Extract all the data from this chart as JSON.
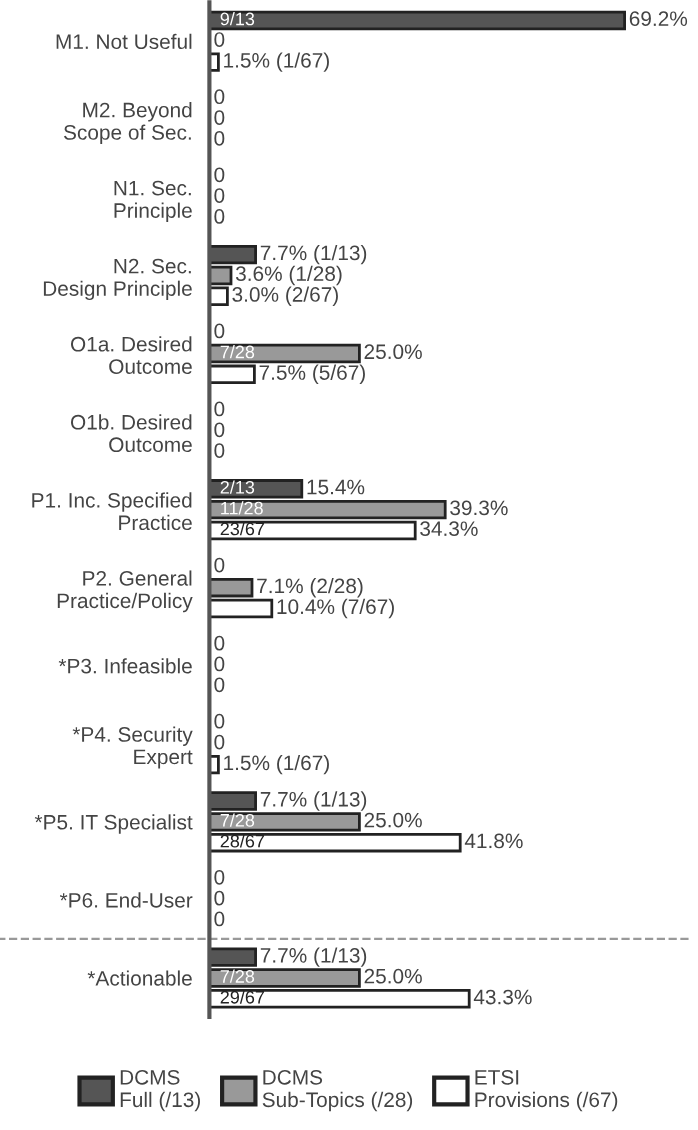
{
  "chart_data": {
    "type": "bar",
    "orientation": "horizontal",
    "categories": [
      "M1. Not Useful",
      "M2. Beyond\nScope of Sec.",
      "N1. Sec.\nPrinciple",
      "N2. Sec.\nDesign Principle",
      "O1a. Desired\nOutcome",
      "O1b. Desired\nOutcome",
      "P1. Inc. Specified\nPractice",
      "P2. General\nPractice/Policy",
      "*P3. Infeasible",
      "*P4. Security\nExpert",
      "*P5. IT Specialist",
      "*P6. End-User",
      "*Actionable"
    ],
    "series": [
      {
        "name": "DCMS\nFull (/13)",
        "color": "#555555",
        "values": [
          69.2,
          0,
          0,
          7.7,
          0,
          0,
          15.4,
          0,
          0,
          0,
          7.7,
          0,
          7.7
        ],
        "value_labels": [
          "9/13 69.2%",
          "0",
          "0",
          "7.7% (1/13)",
          "0",
          "0",
          "2/13 15.4%",
          "0",
          "0",
          "0",
          "7.7% (1/13)",
          "0",
          "7.7% (1/13)"
        ]
      },
      {
        "name": "DCMS\nSub-Topics (/28)",
        "color": "#999999",
        "values": [
          0,
          0,
          0,
          3.6,
          25.0,
          0,
          39.3,
          7.1,
          0,
          0,
          25.0,
          0,
          25.0
        ],
        "value_labels": [
          "0",
          "0",
          "0",
          "3.6% (1/28)",
          "7/28 25.0%",
          "0",
          "11/28 39.3%",
          "7.1% (2/28)",
          "0",
          "0",
          "7/28 25.0%",
          "0",
          "7/28 25.0%"
        ]
      },
      {
        "name": "ETSI\nProvisions (/67)",
        "color": "#ffffff",
        "values": [
          1.5,
          0,
          0,
          3.0,
          7.5,
          0,
          34.3,
          10.4,
          0,
          1.5,
          41.8,
          0,
          43.3
        ],
        "value_labels": [
          "1.5% (1/67)",
          "0",
          "0",
          "3.0% (2/67)",
          "7.5% (5/67)",
          "0",
          "23/67 34.3%",
          "10.4% (7/67)",
          "0",
          "1.5% (1/67)",
          "28/67 41.8%",
          "0",
          "29/67 43.3%"
        ]
      }
    ],
    "legend": "bottom",
    "grid": false
  }
}
